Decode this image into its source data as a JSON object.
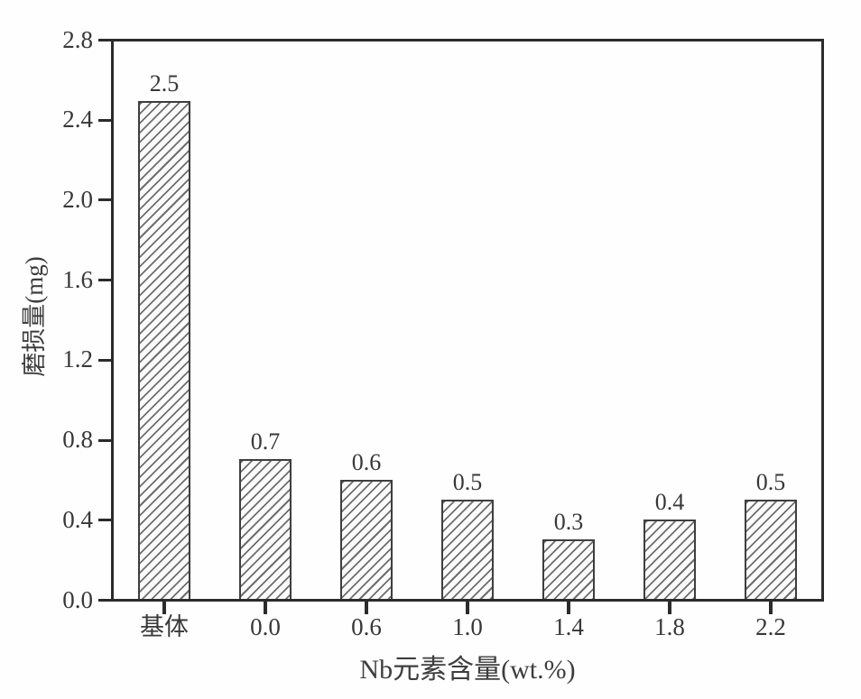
{
  "chart_data": {
    "type": "bar",
    "title": "",
    "xlabel": "Nb元素含量(wt.%)",
    "ylabel": "磨损量(mg)",
    "categories": [
      "基体",
      "0.0",
      "0.6",
      "1.0",
      "1.4",
      "1.8",
      "2.2"
    ],
    "values": [
      2.5,
      0.7,
      0.6,
      0.5,
      0.3,
      0.4,
      0.5
    ],
    "bar_value_labels": [
      "2.5",
      "0.7",
      "0.6",
      "0.5",
      "0.3",
      "0.4",
      "0.5"
    ],
    "ylim": [
      0.0,
      2.8
    ],
    "ytick_step": 0.4,
    "ytick_labels": [
      "0.0",
      "0.4",
      "0.8",
      "1.2",
      "1.6",
      "2.0",
      "2.4",
      "2.8"
    ],
    "grid": false,
    "legend": "none",
    "bar_style": {
      "fill": "#fbfbfb",
      "hatch": "diagonal-forward-slash",
      "hatch_color": "#6e6e6e",
      "border_color": "#3e3e3e"
    },
    "axis_color": "#2b2b2b",
    "text_color": "#383838"
  }
}
